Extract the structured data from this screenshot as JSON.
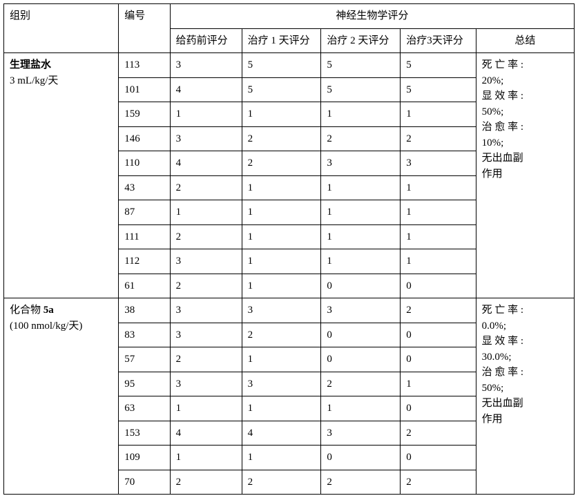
{
  "headers": {
    "group": "组别",
    "number": "编号",
    "neuro_score": "神经生物学评分",
    "pre_dose": "给药前评分",
    "day1": "治疗 1 天评分",
    "day2": "治疗 2 天评分",
    "day3": "治疗3天评分",
    "summary": "总结"
  },
  "groups": [
    {
      "name_line1_bold": "生理盐水",
      "name_line2": "3 mL/kg/天",
      "rows": [
        {
          "num": "113",
          "pre": "3",
          "d1": "5",
          "d2": "5",
          "d3": "5"
        },
        {
          "num": "101",
          "pre": "4",
          "d1": "5",
          "d2": "5",
          "d3": "5"
        },
        {
          "num": "159",
          "pre": "1",
          "d1": "1",
          "d2": "1",
          "d3": "1"
        },
        {
          "num": "146",
          "pre": "3",
          "d1": "2",
          "d2": "2",
          "d3": "2"
        },
        {
          "num": "110",
          "pre": "4",
          "d1": "2",
          "d2": "3",
          "d3": "3"
        },
        {
          "num": "43",
          "pre": "2",
          "d1": "1",
          "d2": "1",
          "d3": "1"
        },
        {
          "num": "87",
          "pre": "1",
          "d1": "1",
          "d2": "1",
          "d3": "1"
        },
        {
          "num": "111",
          "pre": "2",
          "d1": "1",
          "d2": "1",
          "d3": "1"
        },
        {
          "num": "112",
          "pre": "3",
          "d1": "1",
          "d2": "1",
          "d3": "1"
        },
        {
          "num": "61",
          "pre": "2",
          "d1": "1",
          "d2": "0",
          "d3": "0"
        }
      ],
      "summary": {
        "mortality_label": "死 亡 率 :",
        "mortality": "20%;",
        "efficacy_label": "显 效 率 :",
        "efficacy": "50%;",
        "cure_label": "治 愈 率 :",
        "cure": "10%;",
        "side_effect1": "无出血副",
        "side_effect2": "作用"
      }
    },
    {
      "name_line1_pre": "化合物 ",
      "name_line1_bold": "5a",
      "name_line2": "(100 nmol/kg/天)",
      "rows": [
        {
          "num": "38",
          "pre": "3",
          "d1": "3",
          "d2": "3",
          "d3": "2"
        },
        {
          "num": "83",
          "pre": "3",
          "d1": "2",
          "d2": "0",
          "d3": "0"
        },
        {
          "num": "57",
          "pre": "2",
          "d1": "1",
          "d2": "0",
          "d3": "0"
        },
        {
          "num": "95",
          "pre": "3",
          "d1": "3",
          "d2": "2",
          "d3": "1"
        },
        {
          "num": "63",
          "pre": "1",
          "d1": "1",
          "d2": "1",
          "d3": "0"
        },
        {
          "num": "153",
          "pre": "4",
          "d1": "4",
          "d2": "3",
          "d3": "2"
        },
        {
          "num": "109",
          "pre": "1",
          "d1": "1",
          "d2": "0",
          "d3": "0"
        },
        {
          "num": "70",
          "pre": "2",
          "d1": "2",
          "d2": "2",
          "d3": "2"
        }
      ],
      "summary": {
        "mortality_label": "死 亡 率 :",
        "mortality": "0.0%;",
        "efficacy_label": "显 效 率 :",
        "efficacy": "30.0%;",
        "cure_label": "治 愈 率 :",
        "cure": "50%;",
        "side_effect1": "无出血副",
        "side_effect2": "作用"
      }
    }
  ]
}
